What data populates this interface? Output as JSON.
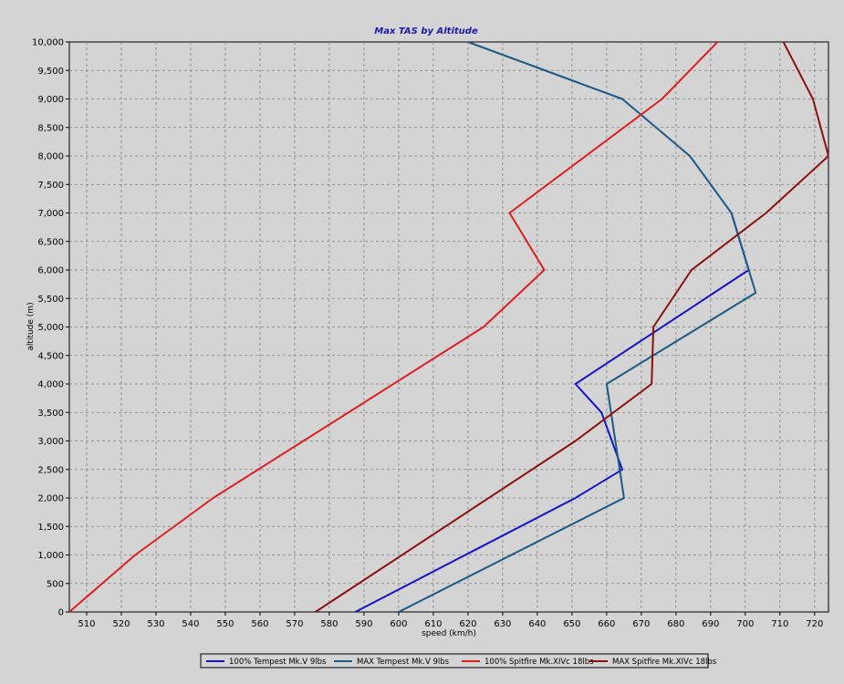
{
  "chart_data": {
    "type": "line",
    "title": "Max TAS by Altitude",
    "xlabel": "speed (km/h)",
    "ylabel": "altitude (m)",
    "xlim": [
      505,
      724
    ],
    "ylim": [
      0,
      10000
    ],
    "x_ticks": [
      510,
      520,
      530,
      540,
      550,
      560,
      570,
      580,
      590,
      600,
      610,
      620,
      630,
      640,
      650,
      660,
      670,
      680,
      690,
      700,
      710,
      720
    ],
    "y_ticks": [
      0,
      500,
      1000,
      1500,
      2000,
      2500,
      3000,
      3500,
      4000,
      4500,
      5000,
      5500,
      6000,
      6500,
      7000,
      7500,
      8000,
      8500,
      9000,
      9500,
      10000
    ],
    "y_tick_labels": [
      "0",
      "500",
      "1,000",
      "1,500",
      "2,000",
      "2,500",
      "3,000",
      "3,500",
      "4,000",
      "4,500",
      "5,000",
      "5,500",
      "6,000",
      "6,500",
      "7,000",
      "7,500",
      "8,000",
      "8,500",
      "9,000",
      "9,500",
      "10,000"
    ],
    "grid": true,
    "legend_position": "bottom",
    "series": [
      {
        "name": "100% Tempest Mk.V  9lbs",
        "color": "#1515c8",
        "points": [
          [
            587.5,
            0
          ],
          [
            651,
            2000
          ],
          [
            664.5,
            2500
          ],
          [
            658.5,
            3500
          ],
          [
            651,
            4000
          ],
          [
            701,
            6000
          ],
          [
            696,
            7000
          ]
        ]
      },
      {
        "name": "MAX Tempest Mk.V  9lbs",
        "color": "#1b5a84",
        "points": [
          [
            600,
            0
          ],
          [
            665,
            2000
          ],
          [
            660,
            4000
          ],
          [
            703,
            5600
          ],
          [
            696,
            7000
          ],
          [
            684,
            8000
          ],
          [
            664.5,
            9000
          ],
          [
            620,
            10000
          ]
        ]
      },
      {
        "name": "100% Spitfire Mk.XIVc 18lbs",
        "color": "#dc1f1f",
        "points": [
          [
            505,
            0
          ],
          [
            524,
            1000
          ],
          [
            546.5,
            2000
          ],
          [
            624.5,
            5000
          ],
          [
            642,
            6000
          ],
          [
            632,
            7000
          ],
          [
            676,
            9000
          ],
          [
            692,
            10000
          ]
        ]
      },
      {
        "name": "MAX Spitfire Mk.XIVc 18lbs",
        "color": "#8c1010",
        "points": [
          [
            576,
            0
          ],
          [
            651,
            3000
          ],
          [
            673,
            4000
          ],
          [
            673.5,
            5000
          ],
          [
            684.5,
            6000
          ],
          [
            706,
            7000
          ],
          [
            724,
            8000
          ],
          [
            719.5,
            9000
          ],
          [
            711,
            10000
          ]
        ]
      }
    ]
  }
}
